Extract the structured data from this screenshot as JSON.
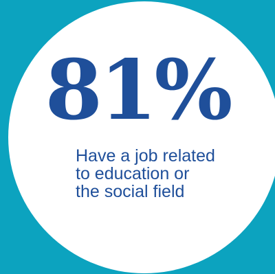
{
  "stat": {
    "value": "81%"
  },
  "caption": {
    "lines": [
      "Have a job related",
      "to education or",
      "the social field"
    ]
  },
  "colors": {
    "background": "#0ca3bf",
    "circle": "#ffffff",
    "text": "#1f4f9a"
  }
}
